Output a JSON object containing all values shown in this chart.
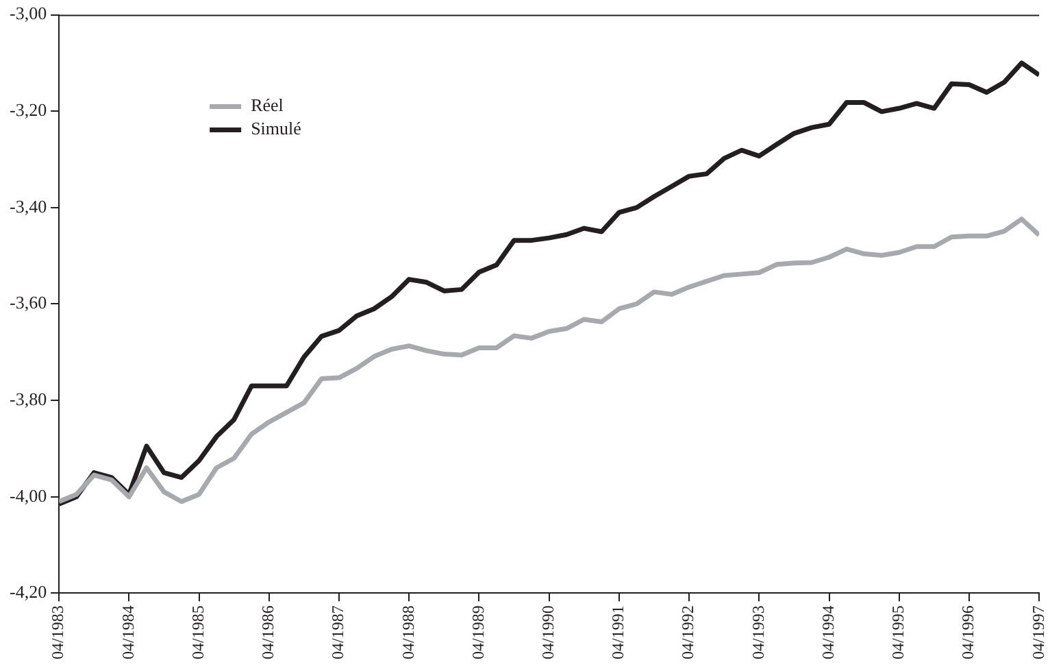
{
  "chart_data": {
    "type": "line",
    "x": [
      "1983-04",
      "1983-07",
      "1983-10",
      "1984-01",
      "1984-04",
      "1984-07",
      "1984-10",
      "1985-01",
      "1985-04",
      "1985-07",
      "1985-10",
      "1986-01",
      "1986-04",
      "1986-07",
      "1986-10",
      "1987-01",
      "1987-04",
      "1987-07",
      "1987-10",
      "1988-01",
      "1988-04",
      "1988-07",
      "1988-10",
      "1989-01",
      "1989-04",
      "1989-07",
      "1989-10",
      "1990-01",
      "1990-04",
      "1990-07",
      "1990-10",
      "1991-01",
      "1991-04",
      "1991-07",
      "1991-10",
      "1992-01",
      "1992-04",
      "1992-07",
      "1992-10",
      "1993-01",
      "1993-04",
      "1993-07",
      "1993-10",
      "1994-01",
      "1994-04",
      "1994-07",
      "1994-10",
      "1995-01",
      "1995-04",
      "1995-07",
      "1995-10",
      "1996-01",
      "1996-04",
      "1996-07",
      "1996-10",
      "1997-01",
      "1997-04"
    ],
    "series": [
      {
        "name": "Réel",
        "color": "#a7a9ac",
        "values": [
          -4.01,
          -3.995,
          -3.955,
          -3.965,
          -4.0,
          -3.94,
          -3.99,
          -4.01,
          -3.995,
          -3.94,
          -3.92,
          -3.87,
          -3.845,
          -3.825,
          -3.805,
          -3.755,
          -3.753,
          -3.734,
          -3.709,
          -3.694,
          -3.687,
          -3.697,
          -3.704,
          -3.706,
          -3.691,
          -3.691,
          -3.666,
          -3.671,
          -3.657,
          -3.651,
          -3.632,
          -3.637,
          -3.61,
          -3.6,
          -3.575,
          -3.58,
          -3.565,
          -3.553,
          -3.541,
          -3.538,
          -3.535,
          -3.518,
          -3.515,
          -3.514,
          -3.503,
          -3.486,
          -3.496,
          -3.499,
          -3.493,
          -3.481,
          -3.481,
          -3.461,
          -3.459,
          -3.459,
          -3.449,
          -3.424,
          -3.457
        ]
      },
      {
        "name": "Simulé",
        "color": "#231f20",
        "values": [
          -4.015,
          -4.0,
          -3.95,
          -3.96,
          -3.995,
          -3.895,
          -3.95,
          -3.96,
          -3.925,
          -3.875,
          -3.84,
          -3.77,
          -3.77,
          -3.77,
          -3.71,
          -3.667,
          -3.655,
          -3.625,
          -3.61,
          -3.585,
          -3.549,
          -3.555,
          -3.573,
          -3.57,
          -3.534,
          -3.519,
          -3.468,
          -3.468,
          -3.463,
          -3.456,
          -3.443,
          -3.45,
          -3.41,
          -3.4,
          -3.377,
          -3.356,
          -3.335,
          -3.33,
          -3.298,
          -3.281,
          -3.293,
          -3.269,
          -3.246,
          -3.234,
          -3.227,
          -3.182,
          -3.182,
          -3.201,
          -3.194,
          -3.184,
          -3.194,
          -3.143,
          -3.145,
          -3.161,
          -3.14,
          -3.1,
          -3.125
        ]
      }
    ],
    "xlim": [
      "1983-04",
      "1997-04"
    ],
    "xticks": [
      {
        "value": "1983-04",
        "label": "04/1983"
      },
      {
        "value": "1984-04",
        "label": "04/1984"
      },
      {
        "value": "1985-04",
        "label": "04/1985"
      },
      {
        "value": "1986-04",
        "label": "04/1986"
      },
      {
        "value": "1987-04",
        "label": "04/1987"
      },
      {
        "value": "1988-04",
        "label": "04/1988"
      },
      {
        "value": "1989-04",
        "label": "04/1989"
      },
      {
        "value": "1990-04",
        "label": "04/1990"
      },
      {
        "value": "1991-04",
        "label": "04/1991"
      },
      {
        "value": "1992-04",
        "label": "04/1992"
      },
      {
        "value": "1993-04",
        "label": "04/1993"
      },
      {
        "value": "1994-04",
        "label": "04/1994"
      },
      {
        "value": "1995-04",
        "label": "04/1995"
      },
      {
        "value": "1996-04",
        "label": "04/1996"
      },
      {
        "value": "1997-04",
        "label": "04/1997"
      }
    ],
    "ylim": [
      -4.2,
      -3.0
    ],
    "yticks": [
      {
        "value": -4.2,
        "label": "-4,20"
      },
      {
        "value": -4.0,
        "label": "-4,00"
      },
      {
        "value": -3.8,
        "label": "-3,80"
      },
      {
        "value": -3.6,
        "label": "-3,60"
      },
      {
        "value": -3.4,
        "label": "-3,40"
      },
      {
        "value": -3.2,
        "label": "-3,20"
      },
      {
        "value": -3.0,
        "label": "-3,00"
      }
    ],
    "grid": false,
    "legend": "top left",
    "marker": "none",
    "line_style": "solid"
  }
}
